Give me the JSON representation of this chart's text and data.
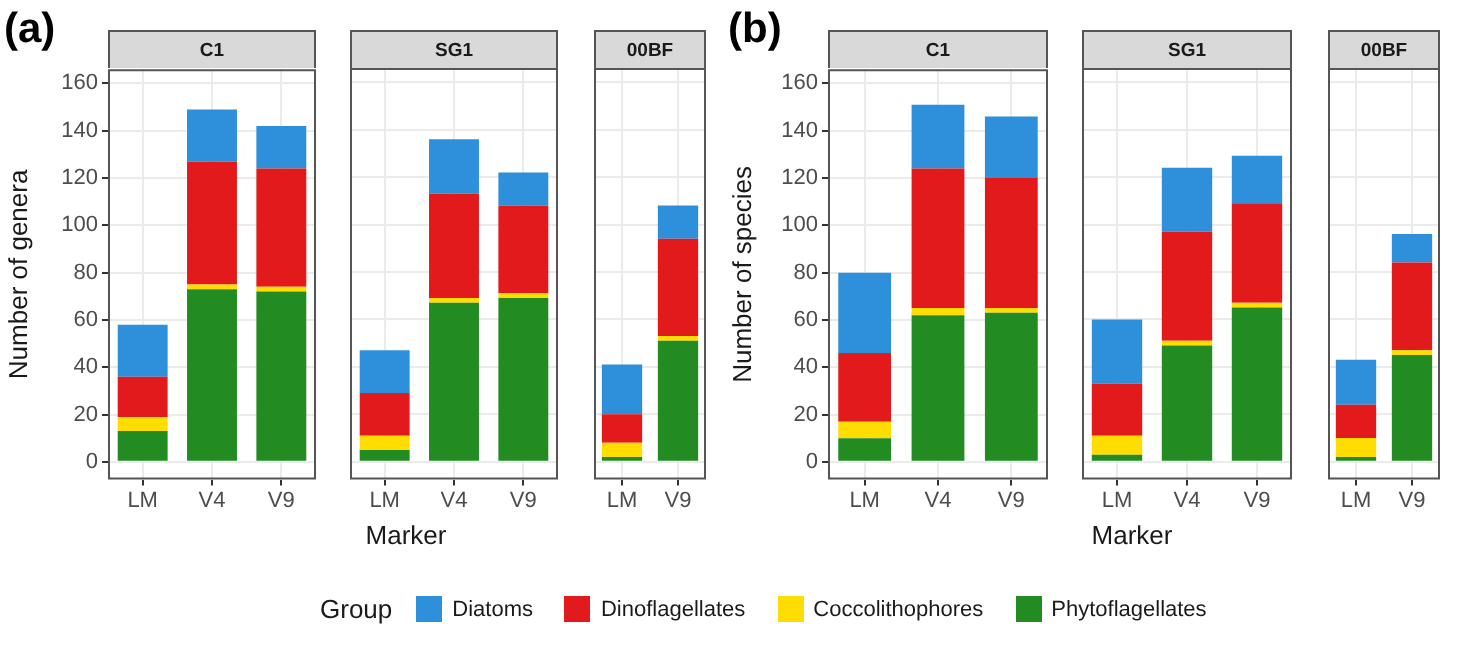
{
  "chart_data": [
    {
      "type": "bar",
      "stacked": true,
      "title": "C1",
      "ylabel": "Number of genera",
      "annotations": [
        "(a)"
      ],
      "legend": "bottom",
      "legend_title": "Group",
      "categories": [
        "LM",
        "V4",
        "V9"
      ],
      "series": [
        {
          "name": "Phytoflagellates",
          "color": "#228b22",
          "values": [
            13,
            73,
            72
          ]
        },
        {
          "name": "Coccolithophores",
          "color": "#ffdd00",
          "values": [
            6,
            2,
            2
          ]
        },
        {
          "name": "Dinoflagellates",
          "color": "#e31a1c",
          "values": [
            17,
            52,
            50
          ]
        },
        {
          "name": "Diatoms",
          "color": "#2e8fdb",
          "values": [
            22,
            22,
            18
          ]
        }
      ],
      "ylim": [
        -7.5,
        166
      ],
      "yticks": [
        0,
        20,
        40,
        60,
        80,
        100,
        120,
        140,
        160
      ],
      "grid": true
    },
    {
      "type": "bar",
      "stacked": true,
      "title": "SG1",
      "xlabel": "Marker",
      "categories": [
        "LM",
        "V4",
        "V9"
      ],
      "series": [
        {
          "color": "#228b22",
          "values": [
            5,
            67,
            69
          ]
        },
        {
          "color": "#ffdd00",
          "values": [
            6,
            2,
            2
          ]
        },
        {
          "color": "#e31a1c",
          "values": [
            18,
            44,
            37
          ]
        },
        {
          "color": "#2e8fdb",
          "values": [
            18,
            23,
            14
          ]
        }
      ],
      "ylim": [
        -7.5,
        166
      ],
      "yticks": [
        0,
        20,
        40,
        60,
        80,
        100,
        120,
        140,
        160
      ],
      "grid": true,
      "tick_labels": "x"
    },
    {
      "type": "bar",
      "stacked": true,
      "title": "00BF",
      "categories": [
        "LM",
        "V9"
      ],
      "series": [
        {
          "color": "#228b22",
          "values": [
            2,
            51
          ]
        },
        {
          "color": "#ffdd00",
          "values": [
            6,
            2
          ]
        },
        {
          "color": "#e31a1c",
          "values": [
            12,
            41
          ]
        },
        {
          "color": "#2e8fdb",
          "values": [
            21,
            14
          ]
        }
      ],
      "ylim": [
        -7.5,
        166
      ],
      "yticks": [
        0,
        20,
        40,
        60,
        80,
        100,
        120,
        140,
        160
      ],
      "grid": true,
      "tick_labels": "x"
    },
    {
      "type": "bar",
      "stacked": true,
      "title": "C1",
      "ylabel": "Number of species",
      "annotations": [
        "(b)"
      ],
      "categories": [
        "LM",
        "V4",
        "V9"
      ],
      "series": [
        {
          "color": "#228b22",
          "values": [
            10,
            62,
            63
          ]
        },
        {
          "color": "#ffdd00",
          "values": [
            7,
            3,
            2
          ]
        },
        {
          "color": "#e31a1c",
          "values": [
            29,
            59,
            55
          ]
        },
        {
          "color": "#2e8fdb",
          "values": [
            34,
            27,
            26
          ]
        }
      ],
      "ylim": [
        -7.5,
        166
      ],
      "yticks": [
        0,
        20,
        40,
        60,
        80,
        100,
        120,
        140,
        160
      ],
      "grid": true
    },
    {
      "type": "bar",
      "stacked": true,
      "title": "SG1",
      "xlabel": "Marker",
      "categories": [
        "LM",
        "V4",
        "V9"
      ],
      "series": [
        {
          "color": "#228b22",
          "values": [
            3,
            49,
            65
          ]
        },
        {
          "color": "#ffdd00",
          "values": [
            8,
            2,
            2
          ]
        },
        {
          "color": "#e31a1c",
          "values": [
            22,
            46,
            42
          ]
        },
        {
          "color": "#2e8fdb",
          "values": [
            27,
            27,
            20
          ]
        }
      ],
      "ylim": [
        -7.5,
        166
      ],
      "yticks": [
        0,
        20,
        40,
        60,
        80,
        100,
        120,
        140,
        160
      ],
      "grid": true,
      "tick_labels": "x"
    },
    {
      "type": "bar",
      "stacked": true,
      "title": "00BF",
      "categories": [
        "LM",
        "V9"
      ],
      "series": [
        {
          "color": "#228b22",
          "values": [
            2,
            45
          ]
        },
        {
          "color": "#ffdd00",
          "values": [
            8,
            2
          ]
        },
        {
          "color": "#e31a1c",
          "values": [
            14,
            37
          ]
        },
        {
          "color": "#2e8fdb",
          "values": [
            19,
            12
          ]
        }
      ],
      "ylim": [
        -7.5,
        166
      ],
      "yticks": [
        0,
        20,
        40,
        60,
        80,
        100,
        120,
        140,
        160
      ],
      "grid": true,
      "tick_labels": "x"
    }
  ]
}
